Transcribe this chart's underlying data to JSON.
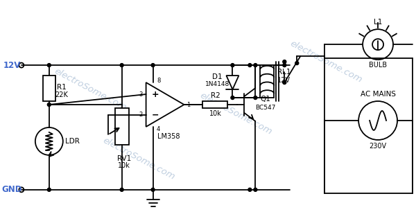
{
  "bg_color": "#ffffff",
  "line_color": "#000000",
  "label_color_blue": "#4169cc",
  "watermark_color": "#c0cfe0",
  "component_labels": {
    "12V": "12V",
    "GND": "GND",
    "R1": "R1",
    "R1_val": "22K",
    "RV1": "RV1",
    "RV1_val": "10k",
    "LDR": "LDR",
    "U1_model": "LM358",
    "R2": "R2",
    "R2_val": "10k",
    "Q1": "Q1",
    "Q1_model": "BC547",
    "D1": "D1",
    "D1_model": "1N4148",
    "RL1": "RL1",
    "RL1_val": "12V",
    "L1": "L1",
    "BULB": "BULB",
    "AC_MAINS": "AC MAINS",
    "V230": "230V"
  }
}
